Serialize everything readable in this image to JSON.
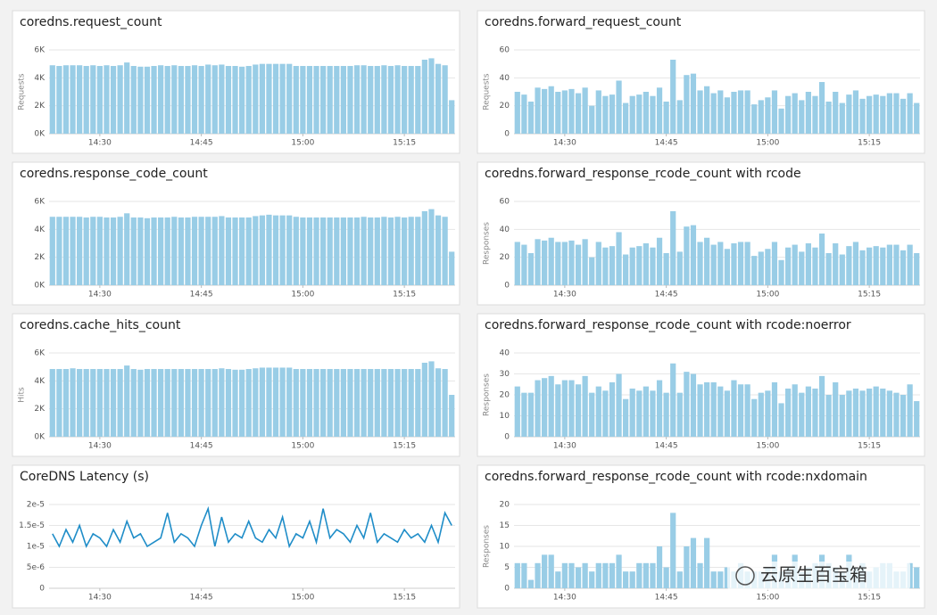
{
  "chart_data": [
    {
      "type": "bar",
      "title": "coredns.request_count",
      "ylabel": "Requests",
      "color": "#99cde6",
      "categories": [
        null,
        null,
        null,
        null,
        null,
        null,
        null,
        "14:30",
        null,
        null,
        null,
        null,
        null,
        null,
        null,
        null,
        null,
        null,
        null,
        null,
        null,
        null,
        "14:45",
        null,
        null,
        null,
        null,
        null,
        null,
        null,
        null,
        null,
        null,
        null,
        null,
        null,
        null,
        "15:00",
        null,
        null,
        null,
        null,
        null,
        null,
        null,
        null,
        null,
        null,
        null,
        null,
        null,
        null,
        "15:15",
        null,
        null,
        null,
        null,
        null,
        null,
        null
      ],
      "values": [
        4900,
        4850,
        4900,
        4900,
        4900,
        4850,
        4900,
        4850,
        4900,
        4850,
        4900,
        5100,
        4850,
        4800,
        4800,
        4850,
        4900,
        4850,
        4900,
        4850,
        4850,
        4900,
        4850,
        4950,
        4900,
        4950,
        4850,
        4850,
        4800,
        4850,
        4950,
        5000,
        5000,
        5000,
        5000,
        5000,
        4850,
        4850,
        4850,
        4850,
        4850,
        4850,
        4850,
        4850,
        4850,
        4900,
        4900,
        4850,
        4850,
        4900,
        4850,
        4900,
        4850,
        4850,
        4850,
        5300,
        5400,
        5000,
        4900,
        2400
      ],
      "ylim": [
        0,
        6000
      ],
      "yticks": [
        {
          "value": 0,
          "label": "0K"
        },
        {
          "value": 2000,
          "label": "2K"
        },
        {
          "value": 4000,
          "label": "4K"
        },
        {
          "value": 6000,
          "label": "6K"
        }
      ],
      "grid": true
    },
    {
      "type": "bar",
      "title": "coredns.forward_request_count",
      "ylabel": "Requests",
      "color": "#99cde6",
      "categories": [
        null,
        null,
        null,
        null,
        null,
        null,
        null,
        "14:30",
        null,
        null,
        null,
        null,
        null,
        null,
        null,
        null,
        null,
        null,
        null,
        null,
        null,
        null,
        "14:45",
        null,
        null,
        null,
        null,
        null,
        null,
        null,
        null,
        null,
        null,
        null,
        null,
        null,
        null,
        "15:00",
        null,
        null,
        null,
        null,
        null,
        null,
        null,
        null,
        null,
        null,
        null,
        null,
        null,
        null,
        "15:15",
        null,
        null,
        null,
        null,
        null,
        null,
        null
      ],
      "values": [
        30,
        28,
        23,
        33,
        32,
        34,
        30,
        31,
        32,
        29,
        33,
        20,
        31,
        27,
        28,
        38,
        22,
        27,
        28,
        30,
        27,
        33,
        23,
        53,
        24,
        42,
        43,
        31,
        34,
        29,
        31,
        26,
        30,
        31,
        31,
        21,
        24,
        26,
        31,
        18,
        27,
        29,
        24,
        30,
        27,
        37,
        23,
        30,
        22,
        28,
        31,
        25,
        27,
        28,
        27,
        29,
        29,
        25,
        29,
        22
      ],
      "ylim": [
        0,
        60
      ],
      "yticks": [
        0,
        20,
        40,
        60
      ],
      "grid": true
    },
    {
      "type": "bar",
      "title": "coredns.response_code_count",
      "color": "#99cde6",
      "categories": [
        null,
        null,
        null,
        null,
        null,
        null,
        null,
        "14:30",
        null,
        null,
        null,
        null,
        null,
        null,
        null,
        null,
        null,
        null,
        null,
        null,
        null,
        null,
        "14:45",
        null,
        null,
        null,
        null,
        null,
        null,
        null,
        null,
        null,
        null,
        null,
        null,
        null,
        null,
        "15:00",
        null,
        null,
        null,
        null,
        null,
        null,
        null,
        null,
        null,
        null,
        null,
        null,
        null,
        null,
        "15:15",
        null,
        null,
        null,
        null,
        null,
        null,
        null
      ],
      "values": [
        4900,
        4900,
        4900,
        4900,
        4900,
        4850,
        4900,
        4900,
        4850,
        4850,
        4900,
        5150,
        4850,
        4850,
        4800,
        4850,
        4850,
        4850,
        4900,
        4850,
        4850,
        4900,
        4900,
        4900,
        4900,
        4950,
        4850,
        4850,
        4850,
        4850,
        4950,
        5000,
        5050,
        5000,
        5000,
        5000,
        4900,
        4850,
        4850,
        4850,
        4850,
        4850,
        4850,
        4850,
        4850,
        4850,
        4900,
        4850,
        4850,
        4900,
        4850,
        4900,
        4850,
        4900,
        4900,
        5300,
        5450,
        5000,
        4900,
        2400
      ],
      "ylim": [
        0,
        6000
      ],
      "yticks": [
        {
          "value": 0,
          "label": "0K"
        },
        {
          "value": 2000,
          "label": "2K"
        },
        {
          "value": 4000,
          "label": "4K"
        },
        {
          "value": 6000,
          "label": "6K"
        }
      ],
      "grid": true
    },
    {
      "type": "bar",
      "title": "coredns.forward_response_rcode_count with rcode",
      "ylabel": "Responses",
      "color": "#99cde6",
      "categories": [
        null,
        null,
        null,
        null,
        null,
        null,
        null,
        "14:30",
        null,
        null,
        null,
        null,
        null,
        null,
        null,
        null,
        null,
        null,
        null,
        null,
        null,
        null,
        "14:45",
        null,
        null,
        null,
        null,
        null,
        null,
        null,
        null,
        null,
        null,
        null,
        null,
        null,
        null,
        "15:00",
        null,
        null,
        null,
        null,
        null,
        null,
        null,
        null,
        null,
        null,
        null,
        null,
        null,
        null,
        "15:15",
        null,
        null,
        null,
        null,
        null,
        null,
        null
      ],
      "values": [
        31,
        29,
        23,
        33,
        32,
        34,
        31,
        31,
        32,
        29,
        33,
        20,
        31,
        27,
        28,
        38,
        22,
        27,
        28,
        30,
        27,
        34,
        23,
        53,
        24,
        42,
        43,
        31,
        34,
        29,
        31,
        26,
        30,
        31,
        31,
        21,
        24,
        26,
        31,
        18,
        27,
        29,
        24,
        30,
        27,
        37,
        23,
        30,
        22,
        28,
        31,
        25,
        27,
        28,
        27,
        29,
        29,
        25,
        29,
        23
      ],
      "ylim": [
        0,
        60
      ],
      "yticks": [
        0,
        20,
        40,
        60
      ],
      "grid": true
    },
    {
      "type": "bar",
      "title": "coredns.cache_hits_count",
      "ylabel": "Hits",
      "color": "#99cde6",
      "categories": [
        null,
        null,
        null,
        null,
        null,
        null,
        null,
        "14:30",
        null,
        null,
        null,
        null,
        null,
        null,
        null,
        null,
        null,
        null,
        null,
        null,
        null,
        null,
        "14:45",
        null,
        null,
        null,
        null,
        null,
        null,
        null,
        null,
        null,
        null,
        null,
        null,
        null,
        null,
        "15:00",
        null,
        null,
        null,
        null,
        null,
        null,
        null,
        null,
        null,
        null,
        null,
        null,
        null,
        null,
        "15:15",
        null,
        null,
        null,
        null,
        null,
        null,
        null
      ],
      "values": [
        4850,
        4850,
        4850,
        4900,
        4850,
        4850,
        4850,
        4850,
        4850,
        4850,
        4850,
        5100,
        4850,
        4800,
        4850,
        4850,
        4850,
        4850,
        4850,
        4850,
        4850,
        4850,
        4850,
        4850,
        4850,
        4900,
        4850,
        4800,
        4800,
        4850,
        4900,
        4950,
        4950,
        4950,
        4950,
        4950,
        4850,
        4850,
        4850,
        4850,
        4850,
        4850,
        4850,
        4850,
        4850,
        4850,
        4850,
        4850,
        4850,
        4850,
        4850,
        4850,
        4850,
        4850,
        4850,
        5300,
        5400,
        4900,
        4850,
        3000
      ],
      "ylim": [
        0,
        6000
      ],
      "yticks": [
        {
          "value": 0,
          "label": "0K"
        },
        {
          "value": 2000,
          "label": "2K"
        },
        {
          "value": 4000,
          "label": "4K"
        },
        {
          "value": 6000,
          "label": "6K"
        }
      ],
      "grid": true
    },
    {
      "type": "bar",
      "title": "coredns.forward_response_rcode_count with rcode:noerror",
      "ylabel": "Responses",
      "color": "#99cde6",
      "categories": [
        null,
        null,
        null,
        null,
        null,
        null,
        null,
        "14:30",
        null,
        null,
        null,
        null,
        null,
        null,
        null,
        null,
        null,
        null,
        null,
        null,
        null,
        null,
        "14:45",
        null,
        null,
        null,
        null,
        null,
        null,
        null,
        null,
        null,
        null,
        null,
        null,
        null,
        null,
        "15:00",
        null,
        null,
        null,
        null,
        null,
        null,
        null,
        null,
        null,
        null,
        null,
        null,
        null,
        null,
        "15:15",
        null,
        null,
        null,
        null,
        null,
        null,
        null
      ],
      "values": [
        24,
        21,
        21,
        27,
        28,
        29,
        25,
        27,
        27,
        25,
        29,
        21,
        24,
        22,
        26,
        30,
        18,
        23,
        22,
        24,
        22,
        27,
        21,
        35,
        21,
        31,
        30,
        25,
        26,
        26,
        24,
        22,
        27,
        25,
        25,
        18,
        21,
        22,
        26,
        16,
        23,
        25,
        21,
        24,
        23,
        29,
        20,
        26,
        20,
        22,
        23,
        22,
        23,
        24,
        23,
        22,
        21,
        20,
        25,
        17
      ],
      "ylim": [
        0,
        40
      ],
      "yticks": [
        0,
        10,
        20,
        30,
        40
      ],
      "grid": true
    },
    {
      "type": "line",
      "title": "CoreDNS Latency (s)",
      "color": "#1f8dc8",
      "categories": [
        null,
        null,
        null,
        null,
        null,
        null,
        null,
        "14:30",
        null,
        null,
        null,
        null,
        null,
        null,
        null,
        null,
        null,
        null,
        null,
        null,
        null,
        null,
        "14:45",
        null,
        null,
        null,
        null,
        null,
        null,
        null,
        null,
        null,
        null,
        null,
        null,
        null,
        null,
        "15:00",
        null,
        null,
        null,
        null,
        null,
        null,
        null,
        null,
        null,
        null,
        null,
        null,
        null,
        null,
        "15:15",
        null,
        null,
        null,
        null,
        null,
        null,
        null
      ],
      "values": [
        1.3e-05,
        1e-05,
        1.4e-05,
        1.1e-05,
        1.5e-05,
        1e-05,
        1.3e-05,
        1.2e-05,
        1e-05,
        1.4e-05,
        1.1e-05,
        1.6e-05,
        1.2e-05,
        1.3e-05,
        1e-05,
        1.1e-05,
        1.2e-05,
        1.8e-05,
        1.1e-05,
        1.3e-05,
        1.2e-05,
        1e-05,
        1.5e-05,
        1.9e-05,
        1e-05,
        1.7e-05,
        1.1e-05,
        1.3e-05,
        1.2e-05,
        1.6e-05,
        1.2e-05,
        1.1e-05,
        1.4e-05,
        1.2e-05,
        1.7e-05,
        1e-05,
        1.3e-05,
        1.2e-05,
        1.6e-05,
        1.1e-05,
        1.9e-05,
        1.2e-05,
        1.4e-05,
        1.3e-05,
        1.1e-05,
        1.5e-05,
        1.2e-05,
        1.8e-05,
        1.1e-05,
        1.3e-05,
        1.2e-05,
        1.1e-05,
        1.4e-05,
        1.2e-05,
        1.3e-05,
        1.1e-05,
        1.5e-05,
        1.1e-05,
        1.8e-05,
        1.5e-05
      ],
      "ylim": [
        0,
        2e-05
      ],
      "yticks": [
        0,
        {
          "value": 5e-06,
          "label": "5e-6"
        },
        {
          "value": 1e-05,
          "label": "1e-5"
        },
        {
          "value": 1.5e-05,
          "label": "1.5e-5"
        },
        {
          "value": 2e-05,
          "label": "2e-5"
        }
      ],
      "grid": true
    },
    {
      "type": "bar",
      "title": "coredns.forward_response_rcode_count with rcode:nxdomain",
      "ylabel": "Responses",
      "color": "#99cde6",
      "categories": [
        null,
        null,
        null,
        null,
        null,
        null,
        null,
        "14:30",
        null,
        null,
        null,
        null,
        null,
        null,
        null,
        null,
        null,
        null,
        null,
        null,
        null,
        null,
        "14:45",
        null,
        null,
        null,
        null,
        null,
        null,
        null,
        null,
        null,
        null,
        null,
        null,
        null,
        null,
        "15:00",
        null,
        null,
        null,
        null,
        null,
        null,
        null,
        null,
        null,
        null,
        null,
        null,
        null,
        null,
        "15:15",
        null,
        null,
        null,
        null,
        null,
        null,
        null
      ],
      "values": [
        6,
        6,
        2,
        6,
        8,
        8,
        4,
        6,
        6,
        5,
        6,
        4,
        6,
        6,
        6,
        8,
        4,
        4,
        6,
        6,
        6,
        10,
        5,
        18,
        4,
        10,
        12,
        6,
        12,
        4,
        4,
        5,
        4,
        6,
        4,
        4,
        4,
        5,
        8,
        4,
        5,
        8,
        4,
        5,
        6,
        8,
        6,
        5,
        4,
        8,
        5,
        6,
        4,
        5,
        6,
        6,
        4,
        4,
        6,
        5
      ],
      "ylim": [
        0,
        20
      ],
      "yticks": [
        0,
        5,
        10,
        15,
        20
      ],
      "grid": true
    }
  ],
  "watermark": "云原生百宝箱"
}
